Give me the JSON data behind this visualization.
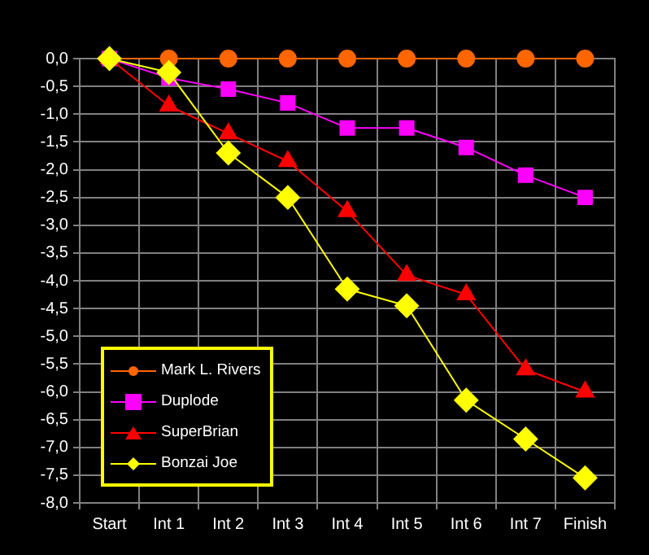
{
  "chart_data": {
    "type": "line",
    "categories": [
      "Start",
      "Int 1",
      "Int 2",
      "Int 3",
      "Int 4",
      "Int 5",
      "Int 6",
      "Int 7",
      "Finish"
    ],
    "series": [
      {
        "name": "Mark L. Rivers",
        "color": "#ff6600",
        "marker": "circle",
        "values": [
          0,
          0,
          0,
          0,
          0,
          0,
          0,
          0,
          0
        ]
      },
      {
        "name": "Duplode",
        "color": "#ff00ff",
        "marker": "square",
        "values": [
          0,
          -0.35,
          -0.55,
          -0.8,
          -1.25,
          -1.25,
          -1.6,
          -2.1,
          -2.5
        ]
      },
      {
        "name": "SuperBrian",
        "color": "#ff0000",
        "marker": "triangle",
        "values": [
          0,
          -0.85,
          -1.35,
          -1.85,
          -2.75,
          -3.9,
          -4.25,
          -5.6,
          -6.0
        ]
      },
      {
        "name": "Bonzai Joe",
        "color": "#ffff00",
        "marker": "diamond",
        "values": [
          0,
          -0.25,
          -1.7,
          -2.5,
          -4.15,
          -4.45,
          -6.15,
          -6.85,
          -7.55
        ]
      }
    ],
    "ylim": [
      -8,
      0
    ],
    "yticks": [
      {
        "value": 0,
        "label": "0,0"
      },
      {
        "value": -0.5,
        "label": "-0,5"
      },
      {
        "value": -1,
        "label": "-1,0"
      },
      {
        "value": -1.5,
        "label": "-1,5"
      },
      {
        "value": -2,
        "label": "-2,0"
      },
      {
        "value": -2.5,
        "label": "-2,5"
      },
      {
        "value": -3,
        "label": "-3,0"
      },
      {
        "value": -3.5,
        "label": "-3,5"
      },
      {
        "value": -4,
        "label": "-4,0"
      },
      {
        "value": -4.5,
        "label": "-4,5"
      },
      {
        "value": -5,
        "label": "-5,0"
      },
      {
        "value": -5.5,
        "label": "-5,5"
      },
      {
        "value": -6,
        "label": "-6,0"
      },
      {
        "value": -6.5,
        "label": "-6,5"
      },
      {
        "value": -7,
        "label": "-7,0"
      },
      {
        "value": -7.5,
        "label": "-7,5"
      },
      {
        "value": -8,
        "label": "-8,0"
      }
    ],
    "grid": true,
    "legend": "bottom left",
    "line_style": "solid"
  }
}
